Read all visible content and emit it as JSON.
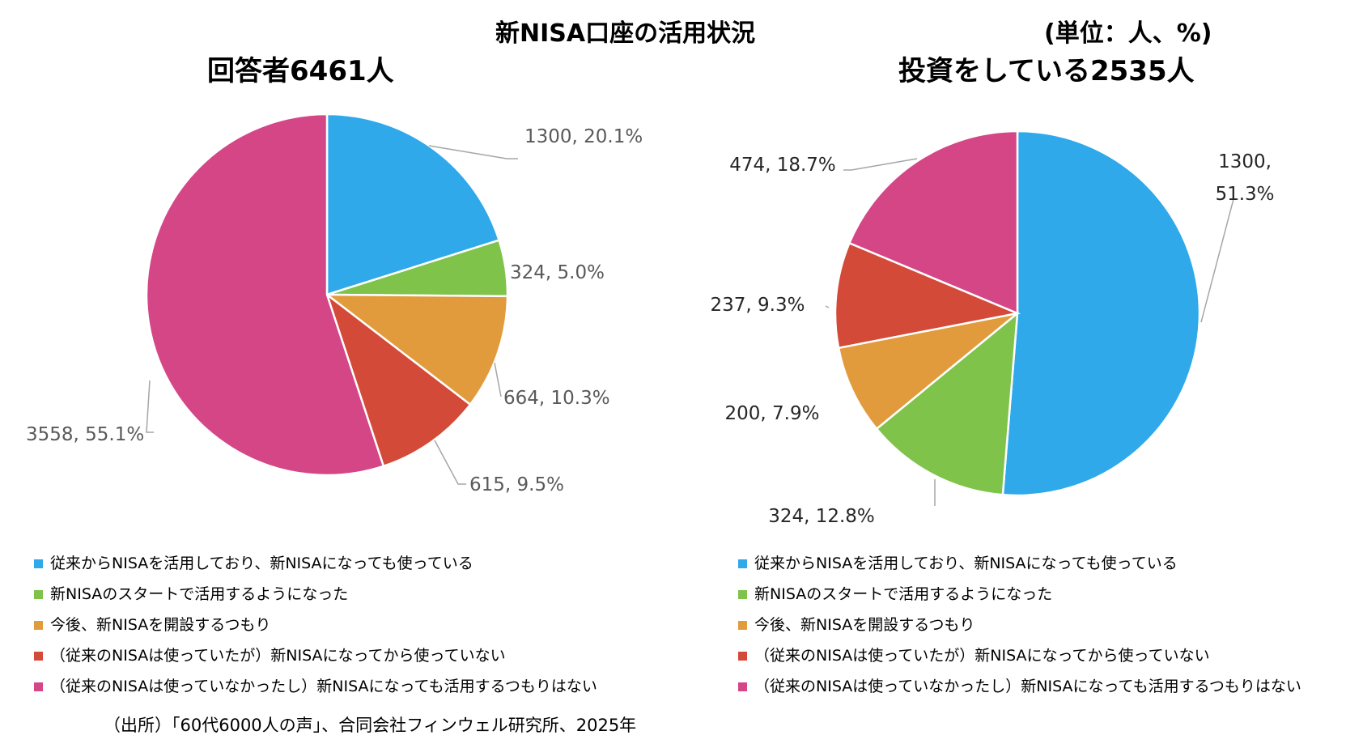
{
  "title": "新NISA口座の活用状況",
  "unit": "(単位：人、%)",
  "source": "（出所）「60代6000人の声」、合同会社フィンウェル研究所、2025年",
  "colors": [
    "#2fa9ea",
    "#7fc34b",
    "#e19b3c",
    "#d44a38",
    "#d54687"
  ],
  "chart_data": [
    {
      "type": "pie",
      "title": "回答者6461人",
      "categories": [
        "従来からNISAを活用しており、新NISAになっても使っている",
        "新NISAのスタートで活用するようになった",
        "今後、新NISAを開設するつもり",
        "（従来のNISAは使っていたが）新NISAになってから使っていない",
        "（従来のNISAは使っていなかったし）新NISAになっても活用するつもりはない"
      ],
      "values": [
        1300,
        324,
        664,
        615,
        3558
      ],
      "percents": [
        20.1,
        5.0,
        10.3,
        9.5,
        55.1
      ],
      "data_labels": [
        "1300, 20.1%",
        "324, 5.0%",
        "664, 10.3%",
        "615, 9.5%",
        "3558, 55.1%"
      ]
    },
    {
      "type": "pie",
      "title": "投資をしている2535人",
      "categories": [
        "従来からNISAを活用しており、新NISAになっても使っている",
        "新NISAのスタートで活用するようになった",
        "今後、新NISAを開設するつもり",
        "（従来のNISAは使っていたが）新NISAになってから使っていない",
        "（従来のNISAは使っていなかったし）新NISAになっても活用するつもりはない"
      ],
      "values": [
        1300,
        324,
        200,
        237,
        474
      ],
      "percents": [
        51.3,
        12.8,
        7.9,
        9.3,
        18.7
      ],
      "data_labels": [
        "1300, 51.3%",
        "324, 12.8%",
        "200, 7.9%",
        "237, 9.3%",
        "474, 18.7%"
      ]
    }
  ]
}
